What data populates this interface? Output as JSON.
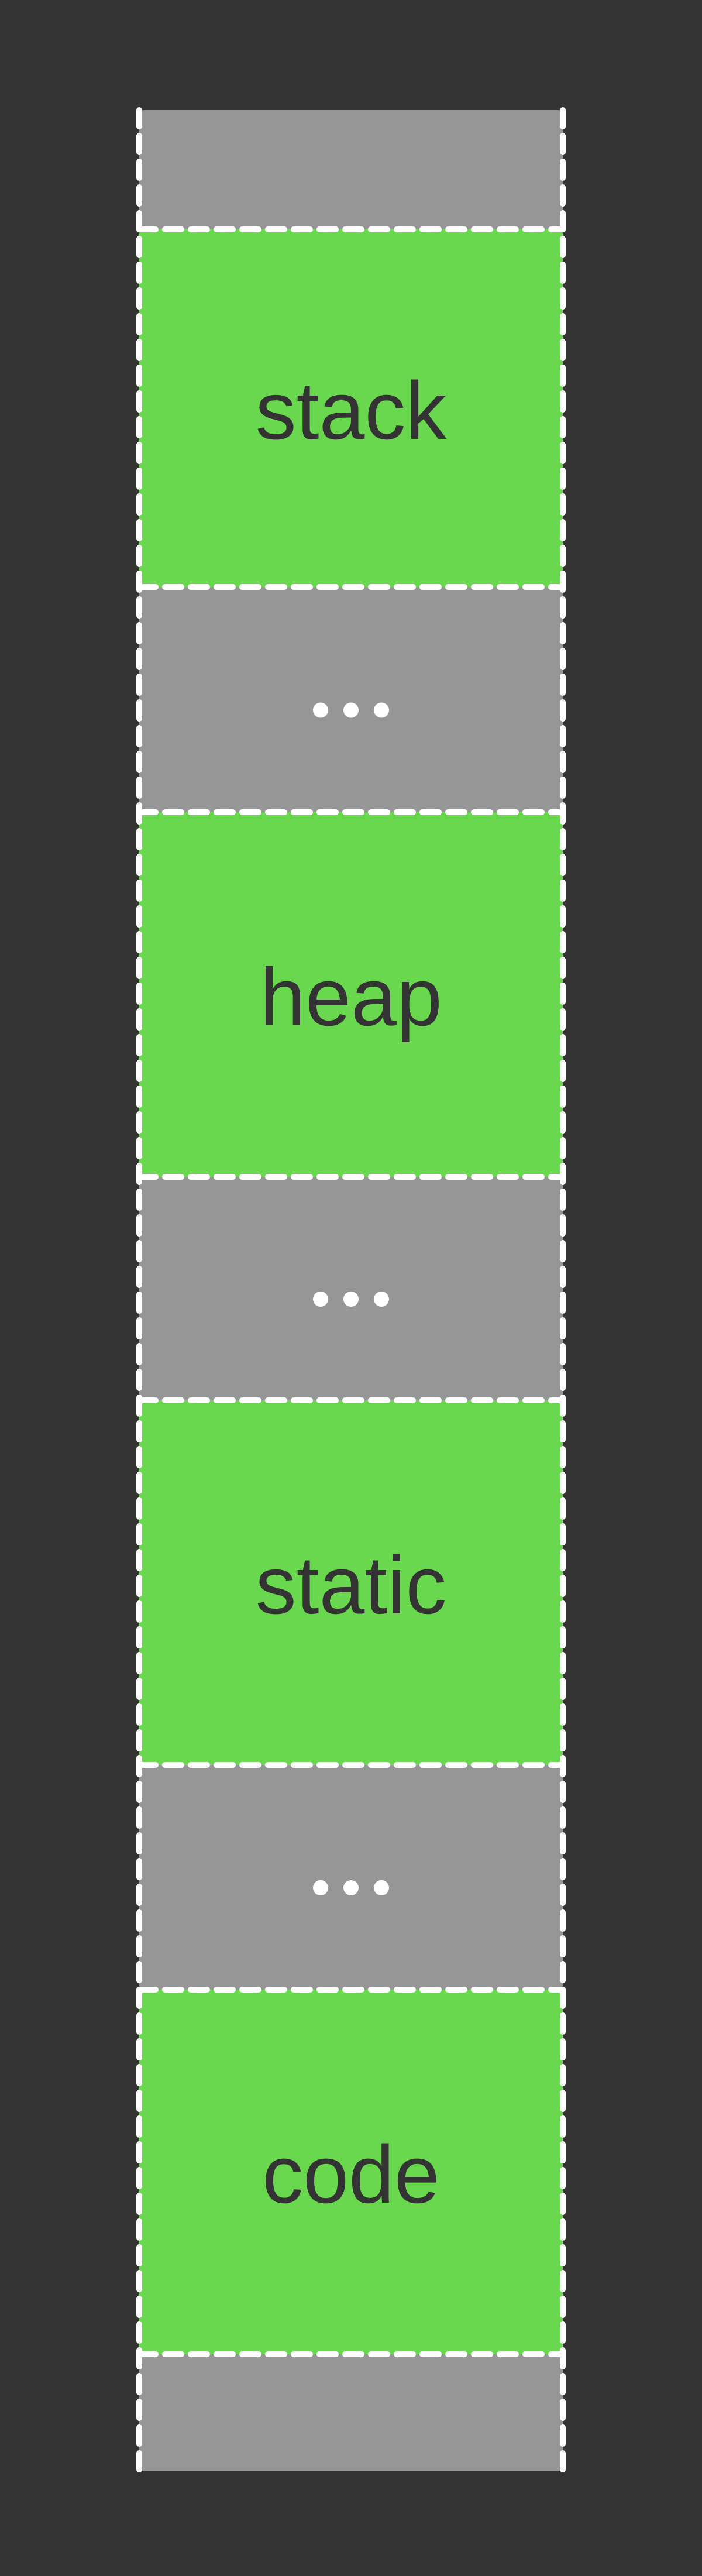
{
  "diagram": {
    "title": "",
    "colors": {
      "background": "#333333",
      "active_segment": "#69d84f",
      "gap_segment": "#969696",
      "divider": "#ffffff",
      "label_text": "#333333",
      "ellipsis": "#ffffff"
    },
    "segments": [
      {
        "kind": "gap",
        "label": ""
      },
      {
        "kind": "region",
        "label": "stack"
      },
      {
        "kind": "gap",
        "label": "..."
      },
      {
        "kind": "region",
        "label": "heap"
      },
      {
        "kind": "gap",
        "label": "..."
      },
      {
        "kind": "region",
        "label": "static"
      },
      {
        "kind": "gap",
        "label": "..."
      },
      {
        "kind": "region",
        "label": "code"
      },
      {
        "kind": "gap",
        "label": ""
      }
    ]
  }
}
